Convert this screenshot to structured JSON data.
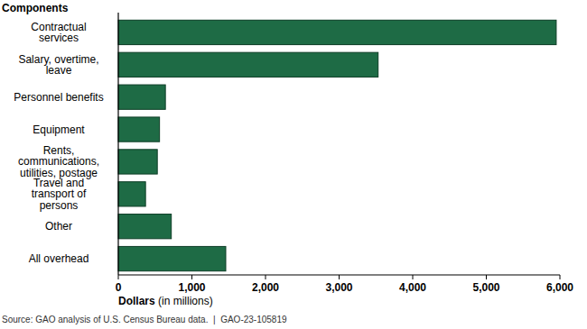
{
  "chart_data": {
    "type": "bar",
    "orientation": "horizontal",
    "ylabel": "Components",
    "xlabel": "Dollars (in millions)",
    "source": "Source: GAO analysis of U.S. Census Bureau data.  |  GAO-23-105819",
    "categories": [
      "Contractual services",
      "Salary, overtime, leave",
      "Personnel benefits",
      "Equipment",
      "Rents, communications, utilities, postage",
      "Travel and transport of persons",
      "Other",
      "All overhead"
    ],
    "values": [
      5950,
      3530,
      640,
      560,
      530,
      370,
      720,
      1460
    ],
    "color": "#1e6b45",
    "xlim": [
      0,
      6000
    ],
    "xticks": [
      0,
      {
        "value": 1000,
        "label": "1,000"
      },
      {
        "value": 2000,
        "label": "2,000"
      },
      {
        "value": 3000,
        "label": "3,000"
      },
      {
        "value": 4000,
        "label": "4,000"
      },
      {
        "value": 5000,
        "label": "5,000"
      },
      {
        "value": 6000,
        "label": "6,000"
      }
    ],
    "grid": false
  }
}
